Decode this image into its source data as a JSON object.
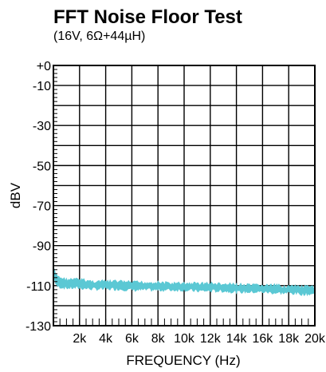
{
  "chart_data": {
    "type": "area",
    "title": "FFT Noise Floor Test",
    "subtitle": "(16V, 6Ω+44µH)",
    "xlabel": "FREQUENCY (Hz)",
    "ylabel": "dBV",
    "xlim": [
      0,
      20000
    ],
    "ylim": [
      -130,
      0
    ],
    "x_ticks": [
      2000,
      4000,
      6000,
      8000,
      10000,
      12000,
      14000,
      16000,
      18000,
      20000
    ],
    "x_tick_labels": [
      "2k",
      "4k",
      "6k",
      "8k",
      "10k",
      "12k",
      "14k",
      "16k",
      "18k",
      "20k"
    ],
    "y_ticks": [
      0,
      -10,
      -30,
      -50,
      -70,
      -90,
      -110,
      -130
    ],
    "y_tick_labels": [
      "+0",
      "-10",
      "-30",
      "-50",
      "-70",
      "-90",
      "-110",
      "-130"
    ],
    "grid": true,
    "series": [
      {
        "color": "#5bc8d4",
        "x": [
          0,
          200,
          500,
          1000,
          2000,
          3000,
          4000,
          5000,
          6000,
          7000,
          8000,
          9000,
          10000,
          11000,
          12000,
          13000,
          14000,
          15000,
          16000,
          17000,
          18000,
          19000,
          20000
        ],
        "y_upper": [
          -100,
          -104,
          -105,
          -106,
          -106,
          -107,
          -107,
          -107,
          -107.5,
          -107.5,
          -107.5,
          -108,
          -108,
          -108,
          -108,
          -108.5,
          -108.5,
          -109,
          -109,
          -109,
          -109.5,
          -109.5,
          -110
        ],
        "y_lower": [
          -105,
          -111,
          -111.5,
          -112,
          -112,
          -112.5,
          -112.5,
          -112.5,
          -113,
          -113,
          -113,
          -113,
          -113,
          -113.5,
          -113.5,
          -113.5,
          -114,
          -114,
          -114,
          -114.5,
          -114.5,
          -115,
          -115
        ]
      }
    ]
  }
}
